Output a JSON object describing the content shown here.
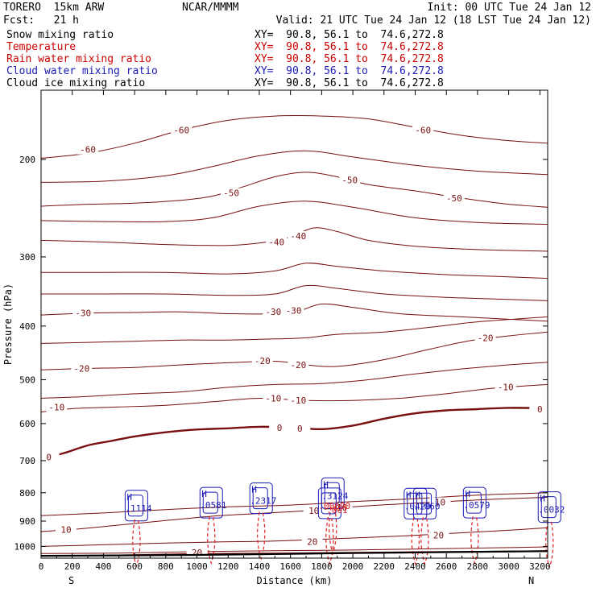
{
  "header": {
    "model": "TORERO  15km ARW",
    "source": "NCAR/MMMM",
    "init": "Init: 00 UTC Tue 24 Jan 12",
    "fcst": "Fcst:   21 h",
    "valid": "Valid: 21 UTC Tue 24 Jan 12 (18 LST Tue 24 Jan 12)",
    "fields": [
      {
        "label": "Snow mixing ratio",
        "xy": "XY=  90.8, 56.1 to  74.6,272.8",
        "color": "#000000"
      },
      {
        "label": "Temperature",
        "xy": "XY=  90.8, 56.1 to  74.6,272.8",
        "color": "#cc0000"
      },
      {
        "label": "Rain water mixing ratio",
        "xy": "XY=  90.8, 56.1 to  74.6,272.8",
        "color": "#cc0000"
      },
      {
        "label": "Cloud water mixing ratio",
        "xy": "XY=  90.8, 56.1 to  74.6,272.8",
        "color": "#1a1ab4"
      },
      {
        "label": "Cloud ice mixing ratio",
        "xy": "XY=  90.8, 56.1 to  74.6,272.8",
        "color": "#000000"
      }
    ]
  },
  "chart_data": {
    "type": "contour cross-section",
    "xlabel": "Distance (km)",
    "ylabel": "Pressure (hPa)",
    "xlim": [
      0,
      3250
    ],
    "ylim": [
      1050,
      150
    ],
    "x_ticks": [
      0,
      200,
      400,
      600,
      800,
      1000,
      1200,
      1400,
      1600,
      1800,
      2000,
      2200,
      2400,
      2600,
      2800,
      3000,
      3200
    ],
    "y_ticks": [
      200,
      300,
      400,
      500,
      600,
      700,
      800,
      900,
      1000
    ],
    "y_log": true,
    "endpoint_labels": {
      "left": "S",
      "right": "N"
    },
    "colors": {
      "temperature": "#7a0f0f",
      "zero_isotherm": "#7a0f0f",
      "rain": "#e02020",
      "cloud_water": "#1a1ab4",
      "terrain": "#000000"
    },
    "temperature_contours": [
      {
        "value": -60,
        "label": "-60",
        "label_pos": [
          [
            300,
            192
          ],
          [
            900,
            177
          ],
          [
            2450,
            177
          ]
        ],
        "points": [
          [
            0,
            199
          ],
          [
            300,
            195
          ],
          [
            600,
            187
          ],
          [
            900,
            177
          ],
          [
            1200,
            170
          ],
          [
            1500,
            167
          ],
          [
            1800,
            167
          ],
          [
            2100,
            169
          ],
          [
            2400,
            175
          ],
          [
            2700,
            181
          ],
          [
            3000,
            185
          ],
          [
            3250,
            187
          ]
        ]
      },
      {
        "value": -50,
        "label": "-50",
        "label_pos": [
          [
            1220,
            230
          ],
          [
            1980,
            218
          ],
          [
            2650,
            235
          ]
        ],
        "points": [
          [
            0,
            243
          ],
          [
            300,
            241
          ],
          [
            600,
            240
          ],
          [
            900,
            237
          ],
          [
            1100,
            233
          ],
          [
            1300,
            224
          ],
          [
            1500,
            215
          ],
          [
            1700,
            211
          ],
          [
            1900,
            215
          ],
          [
            2100,
            222
          ],
          [
            2400,
            228
          ],
          [
            2700,
            235
          ],
          [
            3000,
            241
          ],
          [
            3250,
            244
          ]
        ]
      },
      {
        "value": -40,
        "label": "-40",
        "label_pos": [
          [
            1510,
            282
          ],
          [
            1650,
            275
          ]
        ],
        "points": [
          [
            0,
            280
          ],
          [
            400,
            282
          ],
          [
            800,
            285
          ],
          [
            1200,
            286
          ],
          [
            1450,
            282
          ],
          [
            1600,
            276
          ],
          [
            1750,
            266
          ],
          [
            1900,
            270
          ],
          [
            2100,
            280
          ],
          [
            2400,
            287
          ],
          [
            2800,
            291
          ],
          [
            3250,
            293
          ]
        ]
      },
      {
        "value": -30,
        "label": "-30",
        "label_pos": [
          [
            270,
            379
          ],
          [
            1490,
            377
          ],
          [
            1620,
            375
          ]
        ],
        "points": [
          [
            0,
            382
          ],
          [
            300,
            379
          ],
          [
            600,
            378
          ],
          [
            900,
            377
          ],
          [
            1200,
            380
          ],
          [
            1500,
            380
          ],
          [
            1650,
            376
          ],
          [
            1800,
            365
          ],
          [
            2000,
            370
          ],
          [
            2300,
            380
          ],
          [
            2700,
            385
          ],
          [
            3250,
            392
          ]
        ]
      },
      {
        "value": -20,
        "label": "-20",
        "label_pos": [
          [
            260,
            477
          ],
          [
            1420,
            462
          ],
          [
            1650,
            470
          ],
          [
            2850,
            420
          ]
        ],
        "points": [
          [
            0,
            480
          ],
          [
            300,
            477
          ],
          [
            600,
            475
          ],
          [
            900,
            470
          ],
          [
            1200,
            466
          ],
          [
            1500,
            463
          ],
          [
            1700,
            470
          ],
          [
            1900,
            473
          ],
          [
            2200,
            460
          ],
          [
            2500,
            440
          ],
          [
            2800,
            423
          ],
          [
            3250,
            410
          ]
        ]
      },
      {
        "value": -10,
        "label": "-10",
        "label_pos": [
          [
            100,
            560
          ],
          [
            1490,
            540
          ],
          [
            1650,
            545
          ],
          [
            2980,
            515
          ]
        ],
        "points": [
          [
            0,
            572
          ],
          [
            200,
            564
          ],
          [
            500,
            560
          ],
          [
            800,
            556
          ],
          [
            1100,
            548
          ],
          [
            1400,
            540
          ],
          [
            1700,
            545
          ],
          [
            2000,
            545
          ],
          [
            2300,
            540
          ],
          [
            2600,
            530
          ],
          [
            2900,
            518
          ],
          [
            3250,
            510
          ]
        ]
      },
      {
        "value": 0,
        "label": "0",
        "label_pos": [
          [
            50,
            690
          ],
          [
            1530,
            610
          ],
          [
            1660,
            612
          ],
          [
            3200,
            565
          ]
        ],
        "points": [
          [
            0,
            695
          ],
          [
            150,
            678
          ],
          [
            300,
            657
          ],
          [
            450,
            645
          ],
          [
            600,
            633
          ],
          [
            800,
            622
          ],
          [
            1000,
            615
          ],
          [
            1200,
            612
          ],
          [
            1400,
            608
          ],
          [
            1600,
            610
          ],
          [
            1800,
            614
          ],
          [
            2000,
            605
          ],
          [
            2200,
            588
          ],
          [
            2400,
            575
          ],
          [
            2600,
            568
          ],
          [
            2800,
            565
          ],
          [
            3000,
            562
          ],
          [
            3250,
            563
          ]
        ]
      },
      {
        "value": 10,
        "label": "10",
        "label_pos": [
          [
            160,
            933
          ],
          [
            1750,
            862
          ],
          [
            1930,
            850
          ],
          [
            2560,
            832
          ]
        ],
        "points": [
          [
            0,
            940
          ],
          [
            200,
            932
          ],
          [
            500,
            915
          ],
          [
            800,
            898
          ],
          [
            1100,
            882
          ],
          [
            1400,
            872
          ],
          [
            1700,
            862
          ],
          [
            2000,
            848
          ],
          [
            2300,
            838
          ],
          [
            2600,
            830
          ],
          [
            2900,
            822
          ],
          [
            3250,
            815
          ]
        ]
      },
      {
        "value": 20,
        "label": "20",
        "label_pos": [
          [
            1740,
            980
          ],
          [
            2550,
            955
          ],
          [
            1000,
            1025
          ]
        ],
        "points": [
          [
            0,
            1000
          ],
          [
            300,
            995
          ],
          [
            700,
            988
          ],
          [
            1100,
            982
          ],
          [
            1500,
            978
          ],
          [
            1900,
            968
          ],
          [
            2300,
            958
          ],
          [
            2700,
            945
          ],
          [
            3000,
            935
          ],
          [
            3250,
            925
          ]
        ]
      }
    ],
    "temperature_extra_contours": [
      {
        "points": [
          [
            0,
            1040
          ],
          [
            600,
            1035
          ],
          [
            1000,
            1030
          ],
          [
            1500,
            1028
          ],
          [
            2000,
            1025
          ],
          [
            2500,
            1022
          ],
          [
            3000,
            1020
          ],
          [
            3250,
            1018
          ]
        ]
      },
      {
        "points": [
          [
            0,
            1030
          ],
          [
            500,
            1028
          ],
          [
            1000,
            1022
          ],
          [
            1500,
            1018
          ],
          [
            2000,
            1015
          ],
          [
            2500,
            1010
          ],
          [
            3000,
            1005
          ],
          [
            3250,
            1002
          ]
        ]
      },
      {
        "points": [
          [
            0,
            880
          ],
          [
            400,
            870
          ],
          [
            800,
            858
          ],
          [
            1200,
            848
          ],
          [
            1600,
            842
          ],
          [
            2000,
            830
          ],
          [
            2400,
            820
          ],
          [
            2800,
            808
          ],
          [
            3250,
            800
          ]
        ]
      },
      {
        "points": [
          [
            0,
            540
          ],
          [
            300,
            536
          ],
          [
            600,
            530
          ],
          [
            900,
            526
          ],
          [
            1200,
            516
          ],
          [
            1500,
            510
          ],
          [
            1800,
            508
          ],
          [
            2100,
            500
          ],
          [
            2400,
            488
          ],
          [
            2700,
            478
          ],
          [
            3000,
            470
          ],
          [
            3250,
            465
          ]
        ]
      },
      {
        "points": [
          [
            0,
            430
          ],
          [
            300,
            428
          ],
          [
            600,
            426
          ],
          [
            900,
            424
          ],
          [
            1200,
            424
          ],
          [
            1500,
            422
          ],
          [
            1700,
            420
          ],
          [
            1900,
            414
          ],
          [
            2200,
            410
          ],
          [
            2500,
            402
          ],
          [
            2800,
            393
          ],
          [
            3250,
            385
          ]
        ]
      },
      {
        "points": [
          [
            0,
            350
          ],
          [
            400,
            350
          ],
          [
            800,
            350
          ],
          [
            1200,
            352
          ],
          [
            1500,
            350
          ],
          [
            1700,
            338
          ],
          [
            1900,
            342
          ],
          [
            2200,
            350
          ],
          [
            2600,
            355
          ],
          [
            3000,
            358
          ],
          [
            3250,
            360
          ]
        ]
      },
      {
        "points": [
          [
            0,
            320
          ],
          [
            400,
            320
          ],
          [
            800,
            320
          ],
          [
            1200,
            322
          ],
          [
            1500,
            318
          ],
          [
            1700,
            308
          ],
          [
            1900,
            312
          ],
          [
            2200,
            318
          ],
          [
            2600,
            323
          ],
          [
            3000,
            326
          ],
          [
            3250,
            328
          ]
        ]
      },
      {
        "points": [
          [
            0,
            258
          ],
          [
            400,
            259
          ],
          [
            800,
            259
          ],
          [
            1100,
            255
          ],
          [
            1400,
            243
          ],
          [
            1700,
            238
          ],
          [
            2000,
            244
          ],
          [
            2400,
            255
          ],
          [
            2800,
            260
          ],
          [
            3250,
            262
          ]
        ]
      },
      {
        "points": [
          [
            0,
            220
          ],
          [
            400,
            219
          ],
          [
            800,
            214
          ],
          [
            1100,
            206
          ],
          [
            1400,
            197
          ],
          [
            1700,
            193
          ],
          [
            2000,
            198
          ],
          [
            2400,
            205
          ],
          [
            2800,
            210
          ],
          [
            3250,
            213
          ]
        ]
      }
    ],
    "cloud_features": [
      {
        "x": 560,
        "p": 830,
        "label": ".1114",
        "H": true
      },
      {
        "x": 1040,
        "p": 820,
        "label": ".0581",
        "H": true
      },
      {
        "x": 1360,
        "p": 805,
        "label": ".2317",
        "H": true
      },
      {
        "x": 1820,
        "p": 788,
        "label": ".3124",
        "H": true
      },
      {
        "x": 1800,
        "p": 822,
        "label": ".00690",
        "H": false
      },
      {
        "x": 2350,
        "p": 823,
        "label": ".0420",
        "H": true
      },
      {
        "x": 2410,
        "p": 823,
        "label": ".1060",
        "H": true
      },
      {
        "x": 2730,
        "p": 820,
        "label": ".0579",
        "H": true
      },
      {
        "x": 3210,
        "p": 835,
        "label": ".0032",
        "H": true
      }
    ],
    "rain_labels": [
      {
        "x": 1830,
        "p": 870,
        "label": ".001"
      }
    ],
    "terrain": {
      "points": [
        [
          0,
          1040
        ],
        [
          1000,
          1036
        ],
        [
          2000,
          1028
        ],
        [
          3250,
          1020
        ]
      ]
    }
  }
}
